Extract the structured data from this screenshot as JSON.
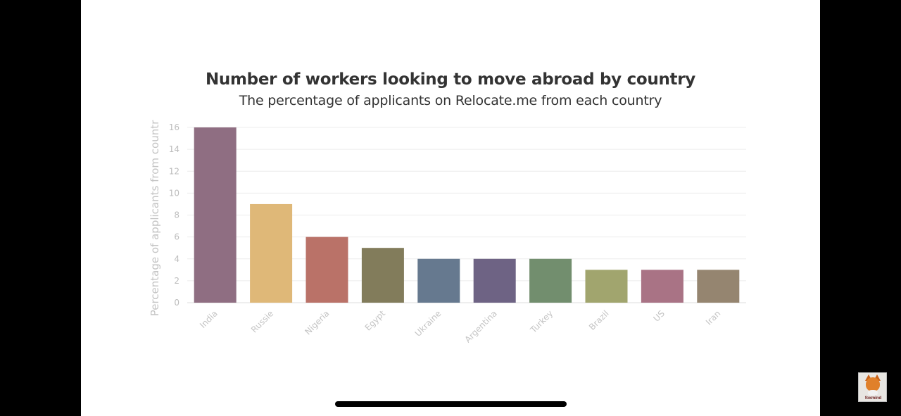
{
  "chart_data": {
    "type": "bar",
    "title": "Number of workers looking to move abroad by country",
    "subtitle": "The percentage of applicants on Relocate.me from each country",
    "xlabel": "",
    "ylabel": "Percentage of applicants from countr",
    "ylim": [
      0,
      16
    ],
    "yticks": [
      0,
      2,
      4,
      6,
      8,
      10,
      12,
      14,
      16
    ],
    "grid": true,
    "legend": "none",
    "categories": [
      "India",
      "Russie",
      "Nigeria",
      "Egypt",
      "Ukraine",
      "Argentina",
      "Turkey",
      "Brazil",
      "US",
      "Iran"
    ],
    "values": [
      16,
      9,
      6,
      5,
      4,
      4,
      4,
      3,
      3,
      3
    ],
    "colors": [
      "#8f6e82",
      "#dfb878",
      "#ba7268",
      "#827c5b",
      "#66798f",
      "#6e6384",
      "#728e6e",
      "#a1a56e",
      "#a97385",
      "#958570"
    ]
  },
  "watermark": {
    "icon": "fox-icon",
    "text": "foxmind"
  }
}
